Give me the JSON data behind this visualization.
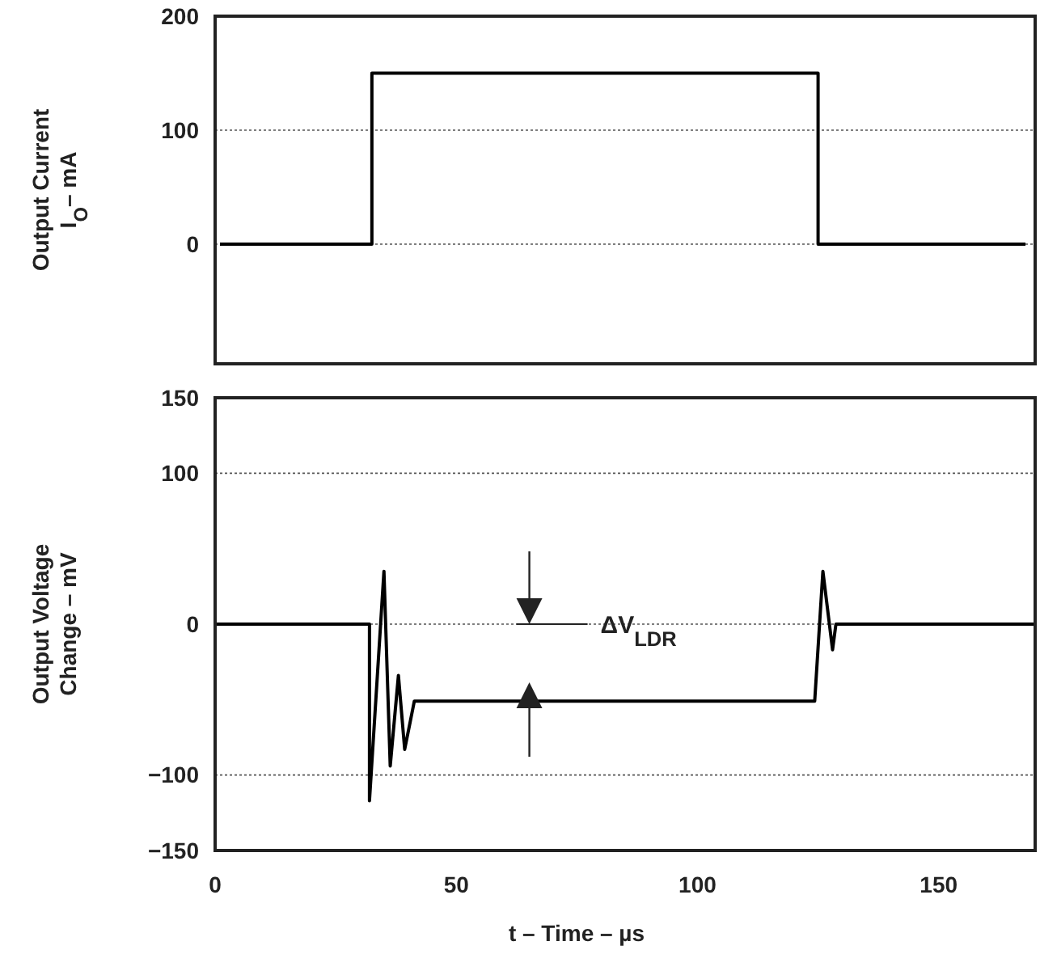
{
  "chart_data": [
    {
      "type": "line",
      "ylabel": "Output Current\nI$_{O}$– mA",
      "xlim": [
        0,
        170
      ],
      "ylim": [
        -105,
        200
      ],
      "yticks": [
        200,
        100,
        0
      ],
      "grid": "y",
      "tick_labels": "y",
      "marker": "none",
      "line_style": "solid",
      "series": [
        {
          "color": "#000000",
          "x": [
            1,
            32.5,
            32.5,
            125,
            125,
            168
          ],
          "values": [
            0,
            0,
            150,
            150,
            0,
            0
          ]
        }
      ]
    },
    {
      "type": "line",
      "ylabel": "Output Voltage\nChange – mV",
      "xlabel": "t – Time – µs",
      "xlim": [
        0,
        170
      ],
      "xticks": [
        0,
        50,
        100,
        150
      ],
      "ylim": [
        -150,
        150
      ],
      "yticks": [
        150,
        100,
        0,
        -100,
        -150
      ],
      "grid": "y",
      "marker": "none",
      "line_style": "solid",
      "annotations": [
        "ΔV$_{LDR}$"
      ],
      "series": [
        {
          "color": "#000000",
          "x": [
            0,
            32,
            32,
            35,
            36.3,
            38,
            39.3,
            41.3,
            124.3,
            126,
            128,
            128.7,
            170
          ],
          "values": [
            0,
            0,
            -117,
            35,
            -94,
            -34,
            -83,
            -51,
            -51,
            35,
            -17,
            0,
            0
          ]
        }
      ]
    }
  ]
}
